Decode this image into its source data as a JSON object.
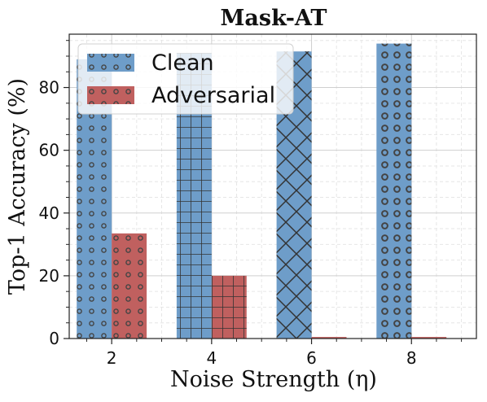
{
  "chart_data": {
    "type": "bar",
    "title": "Mask-AT",
    "xlabel": "Noise Strength (η)",
    "ylabel": "Top-1 Accuracy (%)",
    "categories": [
      "2",
      "4",
      "6",
      "8"
    ],
    "series": [
      {
        "name": "Clean",
        "color": "#6e9dc9",
        "values": [
          89.0,
          91.0,
          91.5,
          94.0
        ],
        "hatches": [
          "dots",
          "grid",
          "cross",
          "rings"
        ]
      },
      {
        "name": "Adversarial",
        "color": "#c0605f",
        "values": [
          33.5,
          20.0,
          0.5,
          0.5
        ],
        "hatches": [
          "dots",
          "grid",
          "none",
          "none"
        ]
      }
    ],
    "ylim": [
      0,
      97
    ],
    "yticks": [
      "0",
      "20",
      "40",
      "60",
      "80"
    ],
    "grid": true,
    "legend_position": "top-left"
  }
}
